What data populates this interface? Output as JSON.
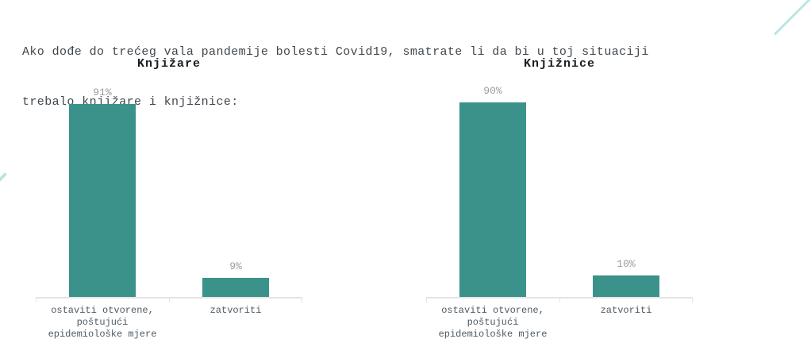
{
  "question": {
    "line1": "Ako dođe do trećeg vala pandemije bolesti Covid19, smatrate li da bi u toj situaciji",
    "line2": "trebalo knjižare i knjižnice:"
  },
  "colors": {
    "bar": "#3a928a",
    "value_label": "#9b9b9b",
    "axis_line": "#e4e4e4",
    "category_label": "#4e5a64",
    "question_text": "#40474d",
    "decorative_accent": "#bee3e2"
  },
  "chart_data": [
    {
      "type": "bar",
      "title": "Knjižare",
      "categories": [
        "ostaviti otvorene,\npoštujući\nepidemiološke mjere",
        "zatvoriti"
      ],
      "values": [
        91,
        9
      ],
      "value_labels": [
        "91%",
        "9%"
      ],
      "xlabel": "",
      "ylabel": "",
      "ylim": [
        0,
        93
      ],
      "grid": false,
      "legend": "none",
      "bar_color": "#3a928a"
    },
    {
      "type": "bar",
      "title": "Knjižnice",
      "categories": [
        "ostaviti otvorene,\npoštujući\nepidemiološke mjere",
        "zatvoriti"
      ],
      "values": [
        90,
        10
      ],
      "value_labels": [
        "90%",
        "10%"
      ],
      "xlabel": "",
      "ylabel": "",
      "ylim": [
        0,
        91
      ],
      "grid": false,
      "legend": "none",
      "bar_color": "#3a928a"
    }
  ]
}
